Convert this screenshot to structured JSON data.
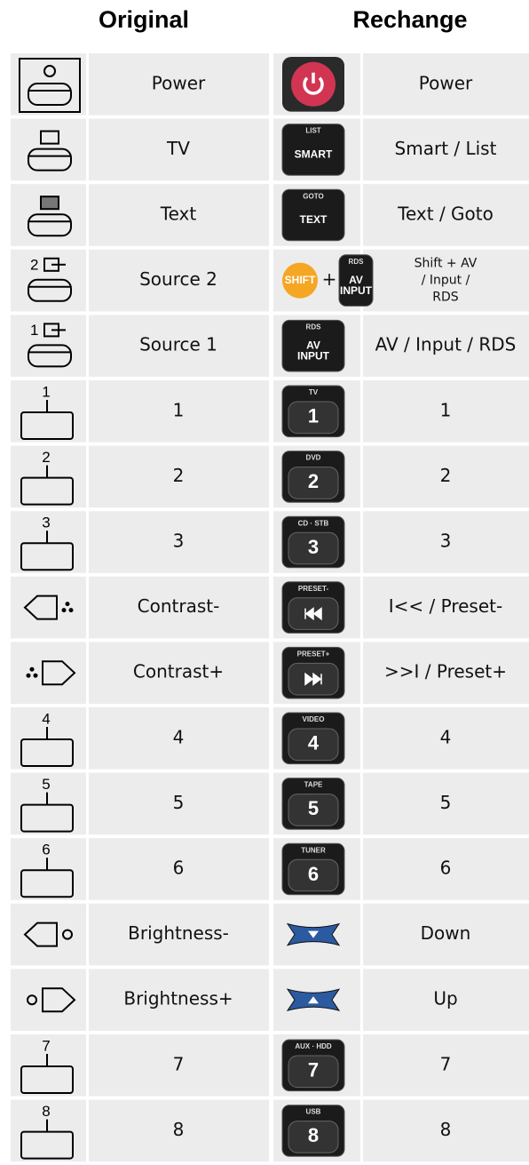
{
  "header": {
    "original": "Original",
    "rechange": "Rechange"
  },
  "rows": [
    {
      "original": "Power",
      "rechange": [
        "Power"
      ],
      "new_icon": {}
    },
    {
      "original": "TV",
      "rechange": [
        "Smart / List"
      ],
      "new_icon": {
        "top": "LIST",
        "main": [
          "SMART"
        ]
      }
    },
    {
      "original": "Text",
      "rechange": [
        "Text / Goto"
      ],
      "new_icon": {
        "top": "GOTO",
        "main": [
          "TEXT"
        ]
      }
    },
    {
      "original": "Source 2",
      "original_icon": "2",
      "rechange": [
        "Shift + AV",
        "/ Input /",
        "RDS"
      ],
      "new_icon": {
        "shift": "SHIFT",
        "plus": "+",
        "top": "RDS",
        "main": [
          "AV",
          "INPUT"
        ]
      }
    },
    {
      "original": "Source 1",
      "original_icon": "1",
      "rechange": [
        "AV / Input / RDS"
      ],
      "new_icon": {
        "top": "RDS",
        "main": [
          "AV",
          "INPUT"
        ]
      }
    },
    {
      "original": "1",
      "original_icon": "1",
      "rechange": [
        "1"
      ],
      "new_icon": {
        "top": "TV",
        "main": [
          "1"
        ]
      }
    },
    {
      "original": "2",
      "original_icon": "2",
      "rechange": [
        "2"
      ],
      "new_icon": {
        "top": "DVD",
        "main": [
          "2"
        ]
      }
    },
    {
      "original": "3",
      "original_icon": "3",
      "rechange": [
        "3"
      ],
      "new_icon": {
        "top": "CD · STB",
        "main": [
          "3"
        ]
      }
    },
    {
      "original": "Contrast-",
      "rechange": [
        "I<< / Preset-"
      ],
      "new_icon": {
        "top": "PRESET-"
      }
    },
    {
      "original": "Contrast+",
      "rechange": [
        ">>I / Preset+"
      ],
      "new_icon": {
        "top": "PRESET+"
      }
    },
    {
      "original": "4",
      "original_icon": "4",
      "rechange": [
        "4"
      ],
      "new_icon": {
        "top": "VIDEO",
        "main": [
          "4"
        ]
      }
    },
    {
      "original": "5",
      "original_icon": "5",
      "rechange": [
        "5"
      ],
      "new_icon": {
        "top": "TAPE",
        "main": [
          "5"
        ]
      }
    },
    {
      "original": "6",
      "original_icon": "6",
      "rechange": [
        "6"
      ],
      "new_icon": {
        "top": "TUNER",
        "main": [
          "6"
        ]
      }
    },
    {
      "original": "Brightness-",
      "rechange": [
        "Down"
      ],
      "new_icon": {}
    },
    {
      "original": "Brightness+",
      "rechange": [
        "Up"
      ],
      "new_icon": {}
    },
    {
      "original": "7",
      "original_icon": "7",
      "rechange": [
        "7"
      ],
      "new_icon": {
        "top": "AUX · HDD",
        "main": [
          "7"
        ]
      }
    },
    {
      "original": "8",
      "original_icon": "8",
      "rechange": [
        "8"
      ],
      "new_icon": {
        "top": "USB",
        "main": [
          "8"
        ]
      }
    }
  ]
}
